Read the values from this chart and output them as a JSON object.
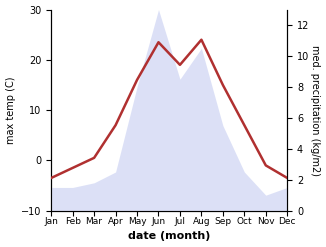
{
  "months": [
    1,
    2,
    3,
    4,
    5,
    6,
    7,
    8,
    9,
    10,
    11,
    12
  ],
  "month_labels": [
    "Jan",
    "Feb",
    "Mar",
    "Apr",
    "May",
    "Jun",
    "Jul",
    "Aug",
    "Sep",
    "Oct",
    "Nov",
    "Dec"
  ],
  "temperature": [
    -3.5,
    -1.5,
    0.5,
    7.0,
    16.0,
    23.5,
    19.0,
    24.0,
    15.0,
    7.0,
    -1.0,
    -3.5
  ],
  "precipitation": [
    1.5,
    1.5,
    1.8,
    2.5,
    8.0,
    13.0,
    8.5,
    10.5,
    5.5,
    2.5,
    1.0,
    1.5
  ],
  "temp_color": "#b03030",
  "precip_color": "#c0c8f0",
  "left_ylabel": "max temp (C)",
  "right_ylabel": "med. precipitation (kg/m2)",
  "xlabel": "date (month)",
  "ylim_left": [
    -10,
    30
  ],
  "ylim_right": [
    0,
    13.0
  ],
  "yticks_left": [
    -10,
    0,
    10,
    20,
    30
  ],
  "yticks_right": [
    0,
    2,
    4,
    6,
    8,
    10,
    12
  ],
  "temp_linewidth": 1.8,
  "fig_width": 3.26,
  "fig_height": 2.47,
  "dpi": 100,
  "precip_alpha": 0.55
}
